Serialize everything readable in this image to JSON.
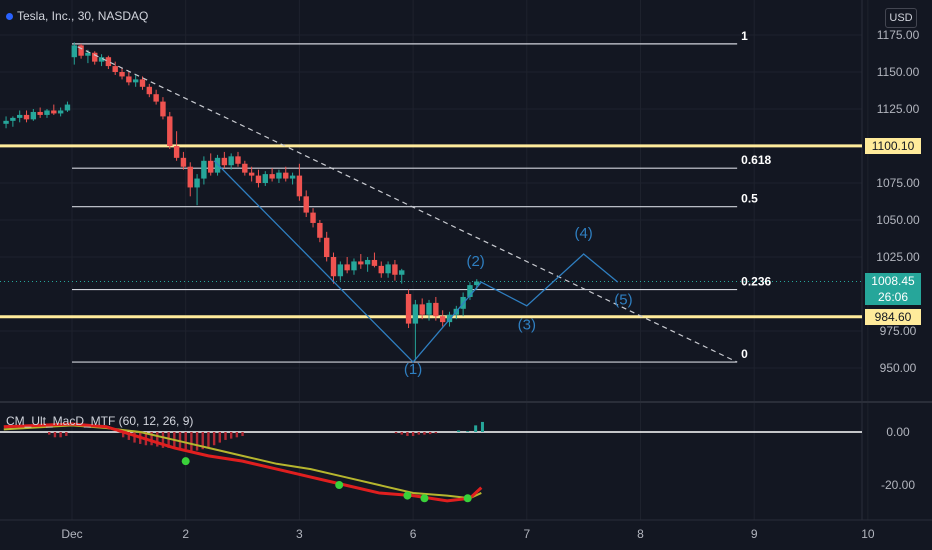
{
  "header": {
    "symbol_title": "Tesla, Inc., 30, NASDAQ",
    "currency": "USD"
  },
  "indicator": {
    "label": "CM_Ult_MacD_MTF (60, 12, 26, 9)"
  },
  "chart_data": {
    "type": "candlestick",
    "symbol": "Tesla, Inc.",
    "interval": "30",
    "exchange": "NASDAQ",
    "price_axis": {
      "min": 945,
      "max": 1185,
      "ticks": [
        "1175.00",
        "1150.00",
        "1125.00",
        "1100.00",
        "1075.00",
        "1050.00",
        "1025.00",
        "975.00",
        "950.00"
      ]
    },
    "time_axis": {
      "min": 0.0,
      "max": 10.0,
      "labels": [
        {
          "t": 0.0,
          "text": "Dec"
        },
        {
          "t": 1.0,
          "text": "2"
        },
        {
          "t": 2.0,
          "text": "3"
        },
        {
          "t": 3.0,
          "text": "6"
        },
        {
          "t": 4.0,
          "text": "7"
        },
        {
          "t": 5.0,
          "text": "8"
        },
        {
          "t": 6.0,
          "text": "9"
        },
        {
          "t": 7.0,
          "text": "10"
        }
      ]
    },
    "price_labels": [
      {
        "value": 1100.1,
        "text": "1100.10",
        "bg": "#ffeb9b",
        "fg": "#131722"
      },
      {
        "value": 1008.45,
        "text": "1008.45",
        "bg": "#26a69a",
        "fg": "#ffffff",
        "sub": "26:06"
      },
      {
        "value": 984.6,
        "text": "984.60",
        "bg": "#ffeb9b",
        "fg": "#131722"
      }
    ],
    "horizontal_lines": [
      {
        "price": 1100.1,
        "color": "#ffeb9b"
      },
      {
        "price": 984.6,
        "color": "#ffeb9b"
      }
    ],
    "fibonacci": {
      "t_start": 0.0,
      "t_end": 5.85,
      "levels": [
        {
          "label": "1",
          "price": 1169
        },
        {
          "label": "0.618",
          "price": 1085
        },
        {
          "label": "0.5",
          "price": 1059
        },
        {
          "label": "0.236",
          "price": 1003
        },
        {
          "label": "0",
          "price": 954
        }
      ]
    },
    "trendline": {
      "t1": 0.05,
      "p1": 1167,
      "t2": 5.85,
      "p2": 954
    },
    "wave_path": [
      {
        "t": 1.25,
        "p": 1090
      },
      {
        "t": 3.0,
        "p": 954
      },
      {
        "t": 3.6,
        "p": 1008
      },
      {
        "t": 4.0,
        "p": 992
      },
      {
        "t": 4.5,
        "p": 1027
      },
      {
        "t": 4.8,
        "p": 1008
      }
    ],
    "wave_labels": [
      {
        "text": "(1)",
        "t": 3.0,
        "p": 946
      },
      {
        "text": "(2)",
        "t": 3.55,
        "p": 1019
      },
      {
        "text": "(3)",
        "t": 4.0,
        "p": 976
      },
      {
        "text": "(4)",
        "t": 4.5,
        "p": 1038
      },
      {
        "text": "(5)",
        "t": 4.85,
        "p": 993
      }
    ],
    "candles": [
      [
        -0.58,
        1115,
        1120,
        1112,
        1117
      ],
      [
        -0.52,
        1117,
        1120,
        1113,
        1119
      ],
      [
        -0.46,
        1119,
        1124,
        1116,
        1121
      ],
      [
        -0.4,
        1121,
        1124,
        1116,
        1118
      ],
      [
        -0.34,
        1118,
        1125,
        1117,
        1123
      ],
      [
        -0.28,
        1123,
        1126,
        1119,
        1121
      ],
      [
        -0.22,
        1121,
        1125,
        1119,
        1124
      ],
      [
        -0.16,
        1124,
        1128,
        1121,
        1122
      ],
      [
        -0.1,
        1122,
        1126,
        1120,
        1124
      ],
      [
        -0.04,
        1124,
        1130,
        1123,
        1128
      ],
      [
        0.02,
        1160,
        1170,
        1155,
        1168
      ],
      [
        0.08,
        1168,
        1169,
        1159,
        1161
      ],
      [
        0.14,
        1161,
        1165,
        1156,
        1163
      ],
      [
        0.2,
        1163,
        1164,
        1155,
        1157
      ],
      [
        0.26,
        1157,
        1162,
        1154,
        1160
      ],
      [
        0.32,
        1160,
        1161,
        1152,
        1154
      ],
      [
        0.38,
        1154,
        1157,
        1148,
        1150
      ],
      [
        0.44,
        1150,
        1153,
        1145,
        1147
      ],
      [
        0.5,
        1147,
        1150,
        1141,
        1143
      ],
      [
        0.56,
        1143,
        1148,
        1140,
        1145
      ],
      [
        0.62,
        1145,
        1147,
        1138,
        1140
      ],
      [
        0.68,
        1140,
        1142,
        1133,
        1135
      ],
      [
        0.74,
        1135,
        1138,
        1128,
        1130
      ],
      [
        0.8,
        1130,
        1133,
        1118,
        1120
      ],
      [
        0.86,
        1120,
        1123,
        1098,
        1100
      ],
      [
        0.92,
        1100,
        1110,
        1090,
        1092
      ],
      [
        0.98,
        1092,
        1096,
        1084,
        1086
      ],
      [
        1.04,
        1086,
        1089,
        1066,
        1072
      ],
      [
        1.1,
        1072,
        1081,
        1060,
        1078
      ],
      [
        1.16,
        1078,
        1093,
        1074,
        1090
      ],
      [
        1.22,
        1090,
        1095,
        1080,
        1082
      ],
      [
        1.28,
        1082,
        1094,
        1080,
        1092
      ],
      [
        1.34,
        1092,
        1096,
        1085,
        1087
      ],
      [
        1.4,
        1087,
        1095,
        1084,
        1093
      ],
      [
        1.46,
        1093,
        1096,
        1086,
        1088
      ],
      [
        1.52,
        1088,
        1090,
        1080,
        1082
      ],
      [
        1.58,
        1082,
        1086,
        1076,
        1080
      ],
      [
        1.64,
        1080,
        1084,
        1072,
        1075
      ],
      [
        1.7,
        1075,
        1083,
        1073,
        1081
      ],
      [
        1.76,
        1081,
        1085,
        1076,
        1078
      ],
      [
        1.82,
        1078,
        1084,
        1075,
        1082
      ],
      [
        1.88,
        1082,
        1086,
        1076,
        1078
      ],
      [
        1.94,
        1078,
        1082,
        1074,
        1080
      ],
      [
        2.0,
        1080,
        1088,
        1063,
        1066
      ],
      [
        2.06,
        1066,
        1070,
        1052,
        1055
      ],
      [
        2.12,
        1055,
        1058,
        1045,
        1048
      ],
      [
        2.18,
        1048,
        1050,
        1035,
        1038
      ],
      [
        2.24,
        1038,
        1042,
        1022,
        1025
      ],
      [
        2.3,
        1025,
        1028,
        1007,
        1012
      ],
      [
        2.36,
        1012,
        1022,
        1009,
        1020
      ],
      [
        2.42,
        1020,
        1025,
        1014,
        1016
      ],
      [
        2.48,
        1016,
        1024,
        1013,
        1022
      ],
      [
        2.54,
        1022,
        1027,
        1017,
        1020
      ],
      [
        2.6,
        1020,
        1025,
        1015,
        1023
      ],
      [
        2.66,
        1023,
        1028,
        1018,
        1019
      ],
      [
        2.72,
        1019,
        1022,
        1011,
        1014
      ],
      [
        2.78,
        1014,
        1022,
        1011,
        1020
      ],
      [
        2.84,
        1020,
        1023,
        1009,
        1013
      ],
      [
        2.9,
        1013,
        1017,
        1007,
        1016
      ],
      [
        2.96,
        1000,
        1003,
        977,
        980
      ],
      [
        3.02,
        980,
        996,
        955,
        993
      ],
      [
        3.08,
        993,
        997,
        983,
        986
      ],
      [
        3.14,
        986,
        996,
        982,
        994
      ],
      [
        3.2,
        994,
        998,
        982,
        985
      ],
      [
        3.26,
        985,
        989,
        978,
        981
      ],
      [
        3.32,
        981,
        988,
        978,
        986
      ],
      [
        3.38,
        986,
        992,
        983,
        990
      ],
      [
        3.44,
        990,
        1001,
        985,
        998
      ],
      [
        3.5,
        998,
        1008,
        996,
        1006
      ],
      [
        3.56,
        1006,
        1010,
        1003,
        1008.45
      ]
    ],
    "macd": {
      "axis": {
        "min": -29,
        "max": 7,
        "ticks": [
          "0.00",
          "-20.00"
        ]
      },
      "fast": [
        [
          -0.6,
          2
        ],
        [
          0.0,
          3
        ],
        [
          0.3,
          2
        ],
        [
          0.6,
          -2
        ],
        [
          0.9,
          -6
        ],
        [
          1.2,
          -9
        ],
        [
          1.5,
          -11
        ],
        [
          1.8,
          -14
        ],
        [
          2.1,
          -17
        ],
        [
          2.4,
          -20
        ],
        [
          2.7,
          -23
        ],
        [
          3.0,
          -24
        ],
        [
          3.3,
          -26
        ],
        [
          3.5,
          -25
        ],
        [
          3.6,
          -21
        ]
      ],
      "signal": [
        [
          -0.6,
          1
        ],
        [
          0.0,
          2.5
        ],
        [
          0.3,
          1.5
        ],
        [
          0.6,
          0
        ],
        [
          0.9,
          -3
        ],
        [
          1.2,
          -6
        ],
        [
          1.5,
          -9
        ],
        [
          1.8,
          -12
        ],
        [
          2.1,
          -14
        ],
        [
          2.4,
          -17
        ],
        [
          2.7,
          -20
        ],
        [
          3.0,
          -23
        ],
        [
          3.3,
          -24
        ],
        [
          3.5,
          -25
        ],
        [
          3.6,
          -23
        ]
      ],
      "histogram_green": [
        [
          3.4,
          0.6
        ],
        [
          3.48,
          0.3
        ],
        [
          3.55,
          2.5
        ],
        [
          3.61,
          3.8
        ]
      ],
      "histogram_red": [
        [
          -0.2,
          -1
        ],
        [
          -0.15,
          -2
        ],
        [
          -0.1,
          -2
        ],
        [
          -0.05,
          -1.5
        ],
        [
          0.45,
          -2
        ],
        [
          0.5,
          -3
        ],
        [
          0.55,
          -4
        ],
        [
          0.6,
          -4.5
        ],
        [
          0.65,
          -5
        ],
        [
          0.7,
          -5
        ],
        [
          0.75,
          -5.5
        ],
        [
          0.8,
          -6
        ],
        [
          0.85,
          -6
        ],
        [
          0.9,
          -6
        ],
        [
          0.95,
          -6.5
        ],
        [
          1.0,
          -6.5
        ],
        [
          1.05,
          -7
        ],
        [
          1.1,
          -7
        ],
        [
          1.15,
          -6.5
        ],
        [
          1.2,
          -6
        ],
        [
          1.25,
          -5
        ],
        [
          1.3,
          -4
        ],
        [
          1.35,
          -3
        ],
        [
          1.4,
          -2.5
        ],
        [
          1.45,
          -2
        ],
        [
          1.5,
          -1.5
        ],
        [
          2.85,
          -0.5
        ],
        [
          2.9,
          -1
        ],
        [
          2.95,
          -1.5
        ],
        [
          3.0,
          -1.5
        ],
        [
          3.05,
          -1
        ],
        [
          3.1,
          -1
        ],
        [
          3.15,
          -0.8
        ],
        [
          3.2,
          -0.5
        ]
      ],
      "cross_dots": [
        [
          1.0,
          -11
        ],
        [
          2.35,
          -20
        ],
        [
          2.95,
          -24
        ],
        [
          3.1,
          -25
        ],
        [
          3.48,
          -25
        ]
      ]
    },
    "colors": {
      "up": "#26a69a",
      "down": "#ef5350",
      "level_line": "#ffffff",
      "fib_line": "#d1d4dc",
      "wave": "#2f7fc1",
      "trend": "#c9cbd1",
      "macd_fast": "#e01f1f",
      "macd_signal": "#b6b62e",
      "cross": "#3ad13a",
      "background": "#131722"
    }
  }
}
